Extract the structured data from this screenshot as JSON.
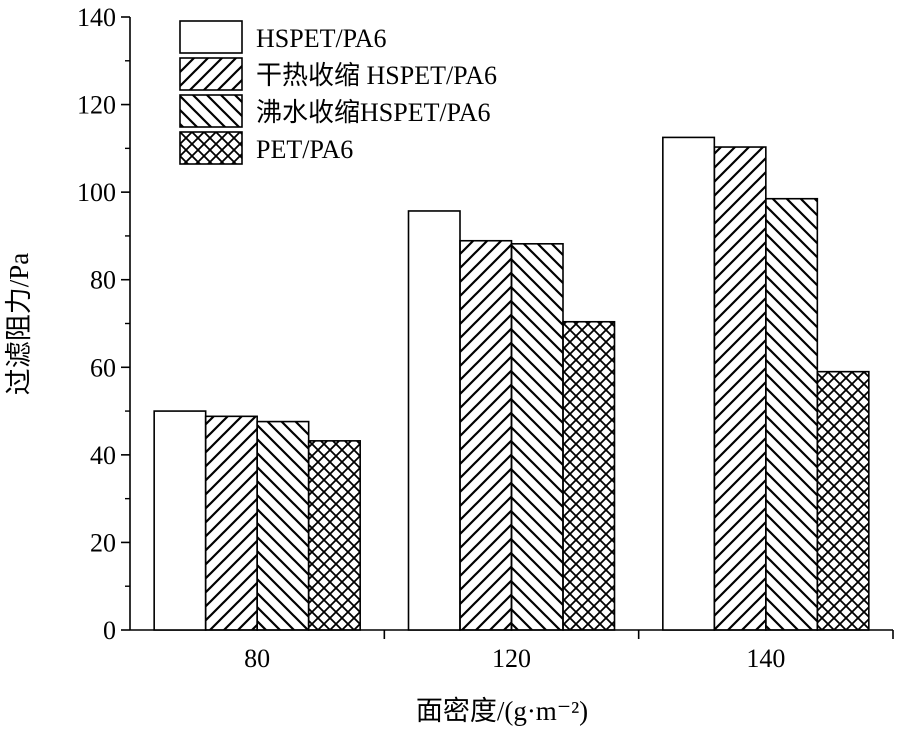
{
  "chart_data": {
    "type": "bar",
    "xlabel": "面密度/(g·m⁻²)",
    "ylabel": "过滤阻力/Pa",
    "categories": [
      "80",
      "120",
      "140"
    ],
    "ylim": [
      0,
      140
    ],
    "yticks": [
      "0",
      "20",
      "40",
      "60",
      "80",
      "100",
      "120",
      "140"
    ],
    "grid": false,
    "legend_position": "top-left",
    "series": [
      {
        "name": "HSPET/PA6",
        "pattern": "none",
        "values": [
          50.0,
          95.7,
          112.5
        ]
      },
      {
        "name": "干热收缩 HSPET/PA6",
        "pattern": "forward-hatch",
        "values": [
          48.8,
          88.9,
          110.3
        ]
      },
      {
        "name": "沸水收缩HSPET/PA6",
        "pattern": "back-hatch",
        "values": [
          47.6,
          88.2,
          98.5
        ]
      },
      {
        "name": "PET/PA6",
        "pattern": "cross-hatch",
        "values": [
          43.2,
          70.4,
          59.0
        ]
      }
    ],
    "colors": {
      "bar_fill": "#ffffff",
      "stroke": "#000000"
    }
  }
}
